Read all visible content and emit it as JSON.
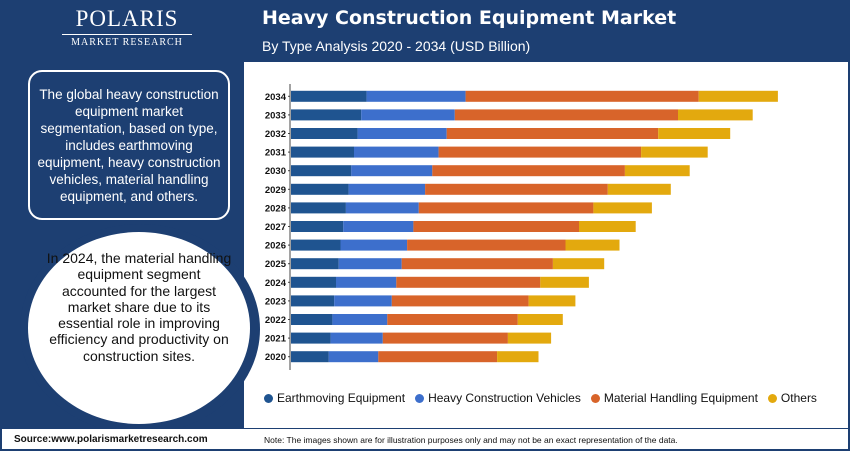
{
  "brand": {
    "name": "POLARIS",
    "sub": "MARKET RESEARCH"
  },
  "header": {
    "title": "Heavy Construction Equipment Market",
    "subtitle": "By Type Analysis 2020 - 2034 (USD Billion)"
  },
  "sidebar": {
    "summary": "The global heavy construction equipment market segmentation, based on type, includes earthmoving equipment, heavy construction vehicles, material handling equipment, and others.",
    "highlight": "In 2024, the material handling equipment segment accounted for the largest market share due to its essential role in improving efficiency and productivity on construction sites."
  },
  "footer": {
    "source": "Source:www.polarismarketresearch.com",
    "note": "Note: The images shown are for illustration purposes only and may not be an exact representation of the data."
  },
  "colors": {
    "navy": "#1d3f72",
    "earthmoving": "#1f5490",
    "vehicles": "#3d6fcc",
    "material": "#d8642a",
    "others": "#e3a90e"
  },
  "chart_data": {
    "type": "bar",
    "orientation": "horizontal",
    "stacked": true,
    "categories": [
      "2034",
      "2033",
      "2032",
      "2031",
      "2030",
      "2029",
      "2028",
      "2027",
      "2026",
      "2025",
      "2024",
      "2023",
      "2022",
      "2021",
      "2020"
    ],
    "series": [
      {
        "name": "Earthmoving Equipment",
        "color": "#1f5490",
        "values": [
          84,
          78,
          74,
          70,
          67,
          64,
          61,
          58,
          55,
          53,
          50,
          48,
          46,
          44,
          42
        ]
      },
      {
        "name": "Heavy Construction Vehicles",
        "color": "#3d6fcc",
        "values": [
          110,
          104,
          99,
          94,
          90,
          85,
          81,
          78,
          74,
          70,
          67,
          64,
          61,
          58,
          55
        ]
      },
      {
        "name": "Material Handling Equipment",
        "color": "#d8642a",
        "values": [
          259,
          248,
          235,
          225,
          214,
          203,
          194,
          184,
          176,
          168,
          160,
          152,
          145,
          139,
          132
        ]
      },
      {
        "name": "Others",
        "color": "#e3a90e",
        "values": [
          88,
          83,
          80,
          74,
          72,
          70,
          65,
          63,
          60,
          57,
          54,
          52,
          50,
          48,
          46
        ]
      }
    ],
    "grid": false,
    "legend": "bottom"
  }
}
